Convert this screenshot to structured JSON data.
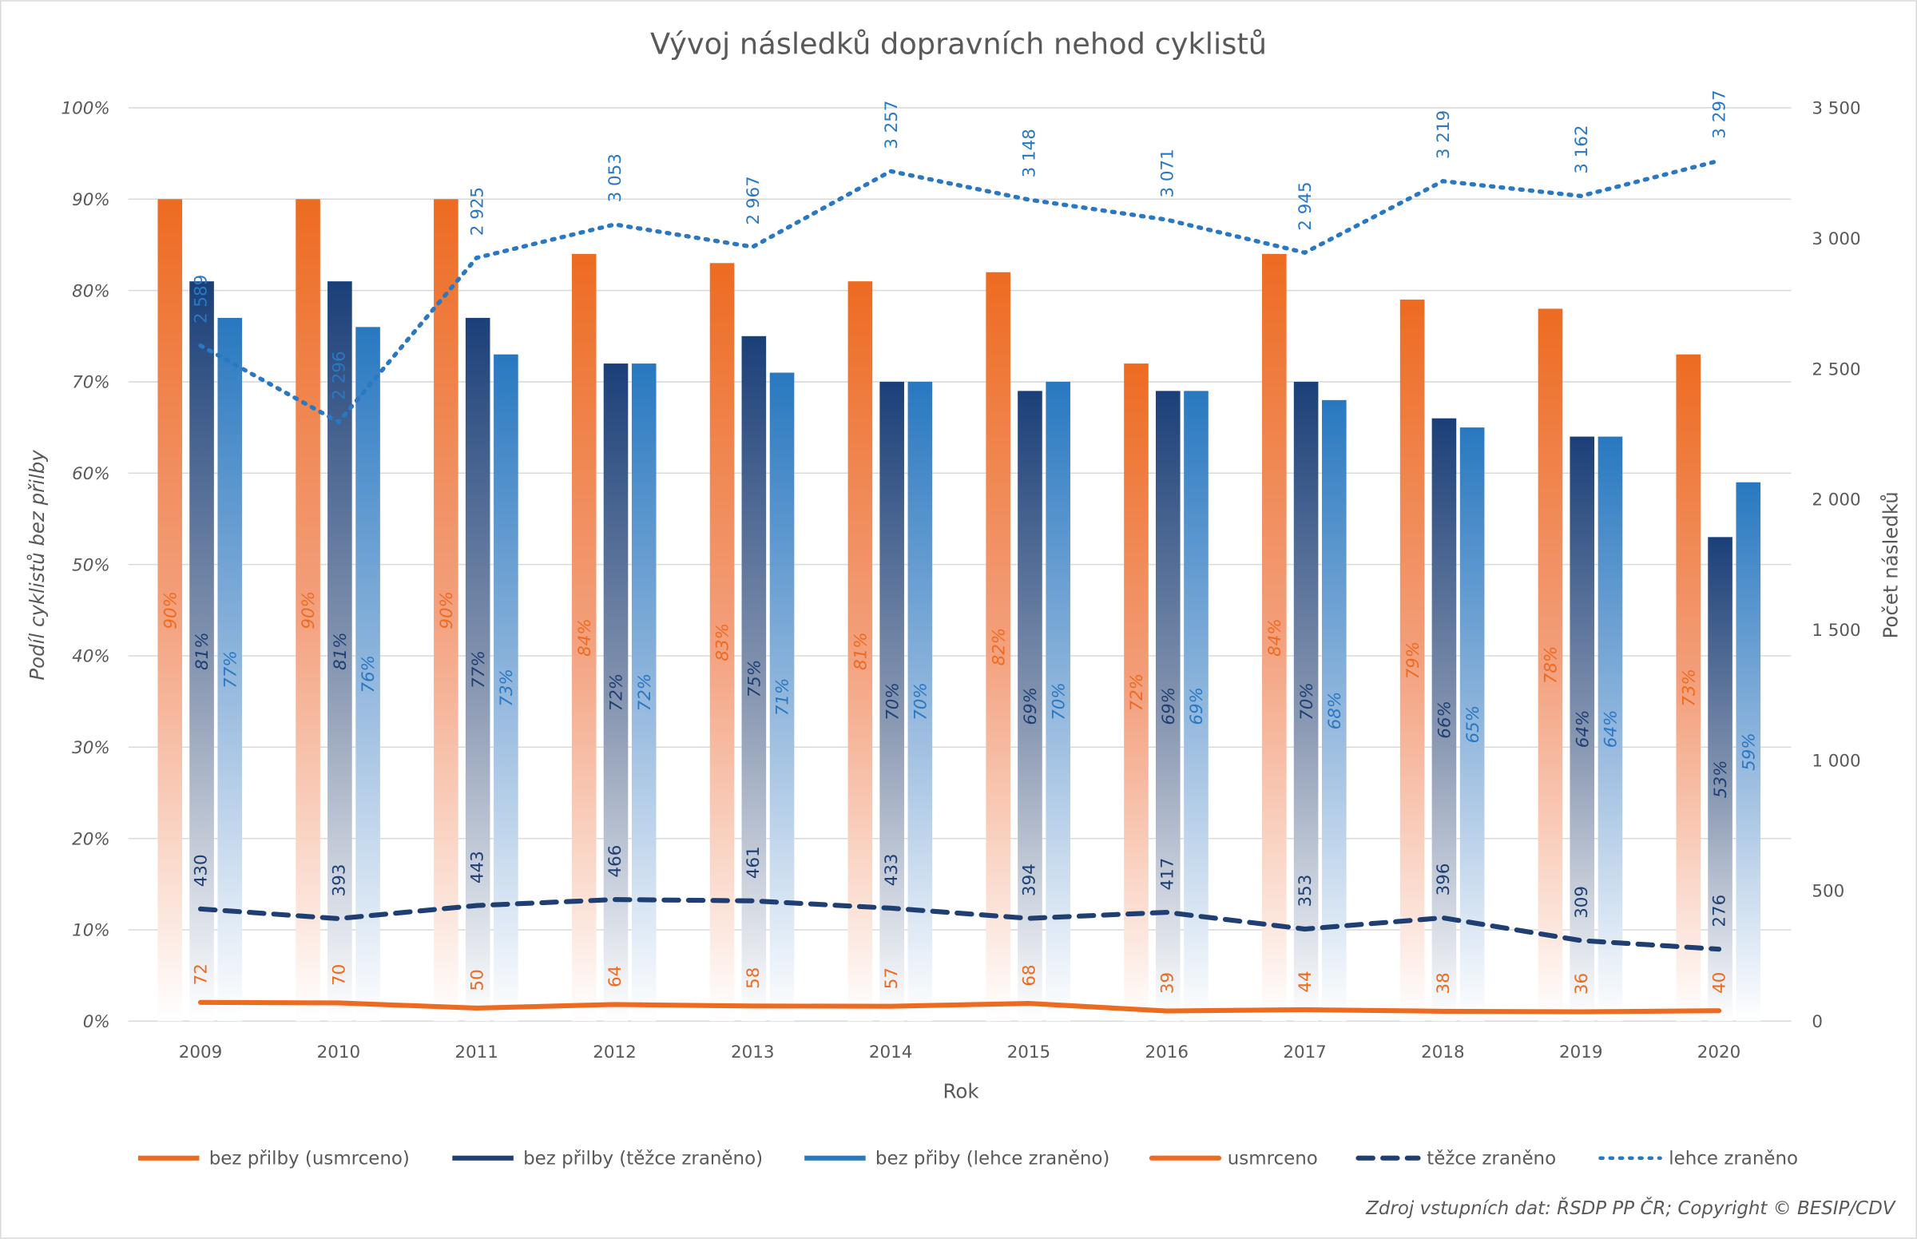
{
  "chart_data": {
    "type": "bar+line",
    "title": "Vývoj následků dopravních nehod cyklistů",
    "xlabel": "Rok",
    "ylabel_left": "Podíl cyklistů bez přilby",
    "ylabel_right": "Počet následků",
    "source": "Zdroj vstupních dat: ŘSDP PP ČR; Copyright © BESIP/CDV",
    "categories": [
      "2009",
      "2010",
      "2011",
      "2012",
      "2013",
      "2014",
      "2015",
      "2016",
      "2017",
      "2018",
      "2019",
      "2020"
    ],
    "ylim_left": [
      0,
      100
    ],
    "yticks_left": [
      "0%",
      "10%",
      "20%",
      "30%",
      "40%",
      "50%",
      "60%",
      "70%",
      "80%",
      "90%",
      "100%"
    ],
    "ylim_right": [
      0,
      3500
    ],
    "yticks_right": [
      "0",
      "500",
      "1 000",
      "1 500",
      "2 000",
      "2 500",
      "3 000",
      "3 500"
    ],
    "grid": true,
    "legend_position": "bottom",
    "bar_series": [
      {
        "name": "bez přilby (usmrceno)",
        "color": "#ed6b21",
        "values": [
          90,
          90,
          90,
          84,
          83,
          81,
          82,
          72,
          84,
          79,
          78,
          73
        ]
      },
      {
        "name": "bez přilby (těžce zraněno)",
        "color": "#1f3f73",
        "values": [
          81,
          81,
          77,
          72,
          75,
          70,
          69,
          69,
          70,
          66,
          64,
          53
        ]
      },
      {
        "name": "bez přiby (lehce zraněno)",
        "color": "#2a78c2",
        "values": [
          77,
          76,
          73,
          72,
          71,
          70,
          70,
          69,
          68,
          65,
          64,
          59
        ]
      }
    ],
    "line_series": [
      {
        "name": "usmrceno",
        "color": "#ed6b21",
        "style": "solid",
        "values": [
          72,
          70,
          50,
          64,
          58,
          57,
          68,
          39,
          44,
          38,
          36,
          40
        ]
      },
      {
        "name": "těžce zraněno",
        "color": "#1f3f73",
        "style": "dashed",
        "values": [
          430,
          393,
          443,
          466,
          461,
          433,
          394,
          417,
          353,
          396,
          309,
          276
        ]
      },
      {
        "name": "lehce zraněno",
        "color": "#2a78c2",
        "style": "dotted",
        "values": [
          2589,
          2296,
          2925,
          3053,
          2967,
          3257,
          3148,
          3071,
          2945,
          3219,
          3162,
          3297
        ]
      }
    ]
  }
}
